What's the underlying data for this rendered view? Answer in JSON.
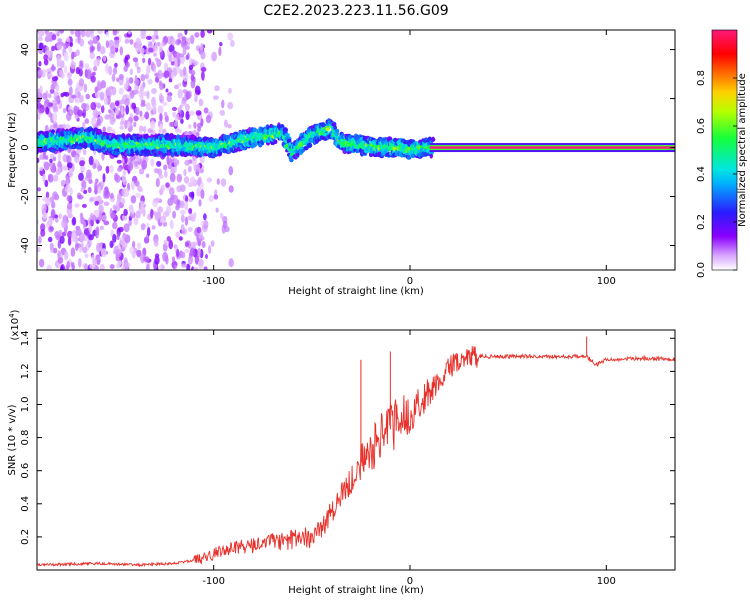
{
  "title": "C2E2.2023.223.11.56.G09",
  "chart_data": [
    {
      "type": "heatmap",
      "name": "spectrogram",
      "xlabel": "Height of straight line (km)",
      "ylabel": "Frequency (Hz)",
      "xlim": [
        -190,
        135
      ],
      "ylim": [
        -50,
        48
      ],
      "xticks": [
        -100,
        0,
        100
      ],
      "xtick_labels": [
        "-100",
        "0",
        "100"
      ],
      "yticks": [
        -40,
        -20,
        0,
        20,
        40
      ],
      "ytick_labels": [
        "-40",
        "-20",
        "0",
        "20",
        "40"
      ],
      "colorbar": {
        "label": "Normalized spectral amplitude",
        "range": [
          0,
          1
        ],
        "ticks": [
          0,
          0.2,
          0.4,
          0.6,
          0.8
        ],
        "tick_labels": [
          "0.0",
          "0.2",
          "0.4",
          "0.6",
          "0.8"
        ],
        "colormap": "rainbow (white-violet-blue-cyan-green-yellow-red-magenta)"
      },
      "features": {
        "noise_region_x": [
          -190,
          -105
        ],
        "ridge": {
          "x": [
            -190,
            -165,
            -150,
            -120,
            -100,
            -80,
            -65,
            -60,
            -50,
            -40,
            -35,
            -25,
            -15,
            -5,
            0,
            10,
            135
          ],
          "freq_hz": [
            2,
            4,
            1,
            1,
            0,
            4,
            6,
            -2,
            5,
            8,
            2,
            1,
            0,
            0,
            -1,
            0,
            0
          ]
        },
        "steady_line": {
          "x_range": [
            10,
            135
          ],
          "freq_hz": 0,
          "amplitude": 1.0
        }
      }
    },
    {
      "type": "line",
      "name": "snr",
      "xlabel": "Height of straight line (km)",
      "ylabel": "SNR (10 * v/v)",
      "y_multiplier_label": "(x10",
      "y_multiplier_exp": "4",
      "y_multiplier_close": ")",
      "xlim": [
        -190,
        135
      ],
      "ylim": [
        0,
        1.45
      ],
      "xticks": [
        -100,
        0,
        100
      ],
      "xtick_labels": [
        "-100",
        "0",
        "100"
      ],
      "yticks": [
        0.2,
        0.4,
        0.6,
        0.8,
        1.0,
        1.2,
        1.4
      ],
      "ytick_labels": [
        "0.2",
        "0.4",
        "0.6",
        "0.8",
        "1.0",
        "1.2",
        "1.4"
      ],
      "color": "#e8302a",
      "series": [
        {
          "name": "SNR",
          "x": [
            -190,
            -160,
            -140,
            -120,
            -105,
            -95,
            -80,
            -70,
            -60,
            -50,
            -45,
            -40,
            -35,
            -30,
            -25,
            -20,
            -15,
            -10,
            -5,
            0,
            5,
            10,
            15,
            20,
            25,
            30,
            40,
            60,
            80,
            90,
            95,
            100,
            120,
            135
          ],
          "y": [
            0.03,
            0.04,
            0.03,
            0.04,
            0.07,
            0.12,
            0.15,
            0.17,
            0.18,
            0.2,
            0.25,
            0.35,
            0.45,
            0.55,
            0.65,
            0.72,
            0.8,
            0.85,
            0.9,
            0.95,
            1.0,
            1.08,
            1.15,
            1.22,
            1.27,
            1.29,
            1.29,
            1.29,
            1.29,
            1.29,
            1.24,
            1.27,
            1.28,
            1.27
          ]
        }
      ],
      "spikes": [
        {
          "x": -25,
          "y": 1.27
        },
        {
          "x": -10,
          "y": 1.32
        },
        {
          "x": 90,
          "y": 1.41
        }
      ]
    }
  ]
}
